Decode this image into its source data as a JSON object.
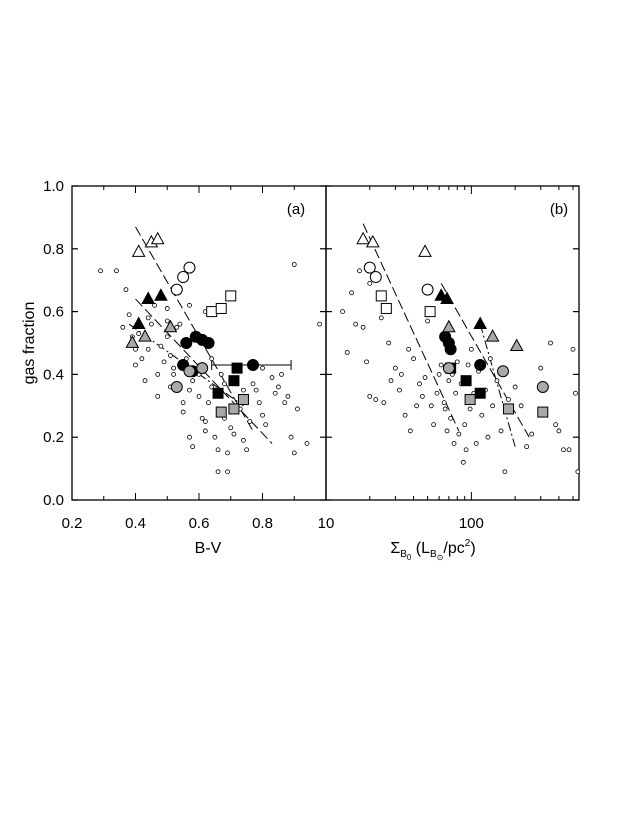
{
  "chart_data": [
    {
      "type": "scatter",
      "panel_label": "(a)",
      "xlabel": "B-V",
      "ylabel": "gas fraction",
      "xlim": [
        0.2,
        1.0
      ],
      "ylim": [
        0.0,
        1.0
      ],
      "xticks": [
        0.2,
        0.4,
        0.6,
        0.8
      ],
      "yticks": [
        0.0,
        0.2,
        0.4,
        0.6,
        0.8,
        1.0
      ],
      "xscale": "linear",
      "grid": false,
      "legend": "none",
      "small_points": [
        [
          0.29,
          0.73
        ],
        [
          0.34,
          0.73
        ],
        [
          0.37,
          0.67
        ],
        [
          0.38,
          0.59
        ],
        [
          0.36,
          0.55
        ],
        [
          0.39,
          0.52
        ],
        [
          0.4,
          0.48
        ],
        [
          0.41,
          0.53
        ],
        [
          0.42,
          0.45
        ],
        [
          0.43,
          0.38
        ],
        [
          0.44,
          0.58
        ],
        [
          0.45,
          0.56
        ],
        [
          0.46,
          0.62
        ],
        [
          0.47,
          0.4
        ],
        [
          0.47,
          0.33
        ],
        [
          0.48,
          0.49
        ],
        [
          0.49,
          0.44
        ],
        [
          0.5,
          0.57
        ],
        [
          0.5,
          0.52
        ],
        [
          0.51,
          0.46
        ],
        [
          0.51,
          0.36
        ],
        [
          0.52,
          0.42
        ],
        [
          0.53,
          0.55
        ],
        [
          0.54,
          0.56
        ],
        [
          0.55,
          0.5
        ],
        [
          0.55,
          0.31
        ],
        [
          0.56,
          0.45
        ],
        [
          0.57,
          0.62
        ],
        [
          0.57,
          0.35
        ],
        [
          0.57,
          0.2
        ],
        [
          0.58,
          0.17
        ],
        [
          0.59,
          0.53
        ],
        [
          0.6,
          0.4
        ],
        [
          0.6,
          0.33
        ],
        [
          0.61,
          0.26
        ],
        [
          0.62,
          0.25
        ],
        [
          0.62,
          0.22
        ],
        [
          0.62,
          0.6
        ],
        [
          0.63,
          0.31
        ],
        [
          0.63,
          0.5
        ],
        [
          0.64,
          0.45
        ],
        [
          0.65,
          0.2
        ],
        [
          0.66,
          0.16
        ],
        [
          0.66,
          0.09
        ],
        [
          0.67,
          0.27
        ],
        [
          0.67,
          0.4
        ],
        [
          0.68,
          0.37
        ],
        [
          0.69,
          0.15
        ],
        [
          0.69,
          0.09
        ],
        [
          0.7,
          0.23
        ],
        [
          0.71,
          0.21
        ],
        [
          0.72,
          0.37
        ],
        [
          0.73,
          0.33
        ],
        [
          0.73,
          0.29
        ],
        [
          0.74,
          0.35
        ],
        [
          0.75,
          0.16
        ],
        [
          0.76,
          0.25
        ],
        [
          0.77,
          0.37
        ],
        [
          0.78,
          0.35
        ],
        [
          0.79,
          0.31
        ],
        [
          0.8,
          0.27
        ],
        [
          0.81,
          0.24
        ],
        [
          0.83,
          0.39
        ],
        [
          0.84,
          0.34
        ],
        [
          0.86,
          0.4
        ],
        [
          0.87,
          0.31
        ],
        [
          0.88,
          0.33
        ],
        [
          0.89,
          0.2
        ],
        [
          0.9,
          0.75
        ],
        [
          0.9,
          0.15
        ],
        [
          0.91,
          0.29
        ],
        [
          0.94,
          0.18
        ],
        [
          0.98,
          0.56
        ],
        [
          0.4,
          0.43
        ],
        [
          0.44,
          0.48
        ],
        [
          0.5,
          0.61
        ],
        [
          0.52,
          0.4
        ],
        [
          0.55,
          0.28
        ],
        [
          0.58,
          0.38
        ],
        [
          0.64,
          0.36
        ],
        [
          0.68,
          0.26
        ],
        [
          0.7,
          0.3
        ],
        [
          0.74,
          0.19
        ],
        [
          0.8,
          0.42
        ],
        [
          0.85,
          0.36
        ]
      ],
      "series": [
        {
          "marker": "triangle",
          "fill": "open",
          "points": [
            [
              0.41,
              0.79
            ],
            [
              0.45,
              0.82
            ],
            [
              0.47,
              0.83
            ]
          ]
        },
        {
          "marker": "circle",
          "fill": "open",
          "points": [
            [
              0.53,
              0.67
            ],
            [
              0.55,
              0.71
            ],
            [
              0.57,
              0.74
            ]
          ]
        },
        {
          "marker": "square",
          "fill": "open",
          "points": [
            [
              0.64,
              0.6
            ],
            [
              0.67,
              0.61
            ],
            [
              0.7,
              0.65
            ]
          ]
        },
        {
          "marker": "triangle",
          "fill": "black",
          "points": [
            [
              0.44,
              0.64
            ],
            [
              0.48,
              0.65
            ],
            [
              0.41,
              0.56
            ]
          ]
        },
        {
          "marker": "circle",
          "fill": "black",
          "points": [
            [
              0.59,
              0.52
            ],
            [
              0.61,
              0.51
            ],
            [
              0.63,
              0.5
            ],
            [
              0.56,
              0.5
            ],
            [
              0.55,
              0.43
            ],
            [
              0.58,
              0.41
            ],
            [
              0.77,
              0.43
            ]
          ]
        },
        {
          "marker": "square",
          "fill": "black",
          "points": [
            [
              0.66,
              0.34
            ],
            [
              0.71,
              0.38
            ],
            [
              0.72,
              0.42
            ]
          ]
        },
        {
          "marker": "triangle",
          "fill": "gray",
          "points": [
            [
              0.39,
              0.5
            ],
            [
              0.43,
              0.52
            ],
            [
              0.51,
              0.55
            ]
          ]
        },
        {
          "marker": "circle",
          "fill": "gray",
          "points": [
            [
              0.53,
              0.36
            ],
            [
              0.57,
              0.41
            ],
            [
              0.61,
              0.42
            ]
          ]
        },
        {
          "marker": "square",
          "fill": "gray",
          "points": [
            [
              0.67,
              0.28
            ],
            [
              0.71,
              0.29
            ],
            [
              0.74,
              0.32
            ]
          ]
        }
      ],
      "error_bar": {
        "x": 0.77,
        "y": 0.43,
        "x_min": 0.64,
        "x_max": 0.89
      },
      "fit_lines": [
        {
          "style": "long-dash",
          "from": [
            0.4,
            0.87
          ],
          "to": [
            0.77,
            0.22
          ]
        },
        {
          "style": "long-dash",
          "from": [
            0.4,
            0.64
          ],
          "to": [
            0.83,
            0.18
          ]
        },
        {
          "style": "dash-dot",
          "from": [
            0.38,
            0.56
          ],
          "to": [
            0.74,
            0.3
          ]
        }
      ]
    },
    {
      "type": "scatter",
      "panel_label": "(b)",
      "xlabel": "Σ_B0 (L_B⊙/pc²)",
      "xlabel_parts": {
        "sigma": "Σ",
        "sigma_sub": "B",
        "sigma_subsub": "0",
        "open": " (L",
        "l_sub": "B",
        "l_subsub": "⊙",
        "mid": "/pc",
        "sup": "2",
        "close": ")"
      },
      "ylabel": "gas fraction",
      "xlim": [
        10,
        550
      ],
      "ylim": [
        0.0,
        1.0
      ],
      "xticks": [
        10,
        100
      ],
      "yticks": [
        0.0,
        0.2,
        0.4,
        0.6,
        0.8,
        1.0
      ],
      "xscale": "log",
      "grid": false,
      "legend": "none",
      "small_points": [
        [
          13,
          0.6
        ],
        [
          14,
          0.47
        ],
        [
          15,
          0.66
        ],
        [
          16,
          0.56
        ],
        [
          17,
          0.73
        ],
        [
          18,
          0.55
        ],
        [
          19,
          0.44
        ],
        [
          20,
          0.69
        ],
        [
          20,
          0.33
        ],
        [
          22,
          0.32
        ],
        [
          23,
          0.65
        ],
        [
          24,
          0.58
        ],
        [
          25,
          0.31
        ],
        [
          27,
          0.5
        ],
        [
          28,
          0.38
        ],
        [
          30,
          0.42
        ],
        [
          32,
          0.35
        ],
        [
          33,
          0.4
        ],
        [
          35,
          0.27
        ],
        [
          37,
          0.48
        ],
        [
          38,
          0.22
        ],
        [
          40,
          0.45
        ],
        [
          42,
          0.3
        ],
        [
          44,
          0.37
        ],
        [
          46,
          0.33
        ],
        [
          48,
          0.39
        ],
        [
          50,
          0.57
        ],
        [
          53,
          0.3
        ],
        [
          55,
          0.24
        ],
        [
          58,
          0.34
        ],
        [
          60,
          0.4
        ],
        [
          62,
          0.43
        ],
        [
          65,
          0.31
        ],
        [
          66,
          0.29
        ],
        [
          68,
          0.22
        ],
        [
          70,
          0.38
        ],
        [
          72,
          0.26
        ],
        [
          74,
          0.4
        ],
        [
          76,
          0.18
        ],
        [
          78,
          0.34
        ],
        [
          80,
          0.44
        ],
        [
          82,
          0.21
        ],
        [
          85,
          0.37
        ],
        [
          88,
          0.12
        ],
        [
          90,
          0.24
        ],
        [
          92,
          0.16
        ],
        [
          95,
          0.43
        ],
        [
          98,
          0.29
        ],
        [
          100,
          0.48
        ],
        [
          104,
          0.34
        ],
        [
          108,
          0.18
        ],
        [
          112,
          0.41
        ],
        [
          118,
          0.27
        ],
        [
          125,
          0.35
        ],
        [
          130,
          0.2
        ],
        [
          135,
          0.45
        ],
        [
          140,
          0.3
        ],
        [
          150,
          0.38
        ],
        [
          160,
          0.22
        ],
        [
          170,
          0.09
        ],
        [
          180,
          0.32
        ],
        [
          200,
          0.36
        ],
        [
          220,
          0.3
        ],
        [
          240,
          0.17
        ],
        [
          260,
          0.21
        ],
        [
          300,
          0.42
        ],
        [
          350,
          0.5
        ],
        [
          380,
          0.24
        ],
        [
          400,
          0.22
        ],
        [
          430,
          0.16
        ],
        [
          470,
          0.16
        ],
        [
          500,
          0.48
        ],
        [
          520,
          0.34
        ],
        [
          540,
          0.09
        ]
      ],
      "series": [
        {
          "marker": "triangle",
          "fill": "open",
          "points": [
            [
              18,
              0.83
            ],
            [
              21,
              0.82
            ],
            [
              48,
              0.79
            ]
          ]
        },
        {
          "marker": "circle",
          "fill": "open",
          "points": [
            [
              20,
              0.74
            ],
            [
              22,
              0.71
            ],
            [
              50,
              0.67
            ]
          ]
        },
        {
          "marker": "square",
          "fill": "open",
          "points": [
            [
              24,
              0.65
            ],
            [
              26,
              0.61
            ],
            [
              52,
              0.6
            ]
          ]
        },
        {
          "marker": "triangle",
          "fill": "black",
          "points": [
            [
              62,
              0.65
            ],
            [
              68,
              0.64
            ],
            [
              115,
              0.56
            ]
          ]
        },
        {
          "marker": "circle",
          "fill": "black",
          "points": [
            [
              66,
              0.52
            ],
            [
              70,
              0.5
            ],
            [
              72,
              0.48
            ],
            [
              115,
              0.43
            ]
          ]
        },
        {
          "marker": "square",
          "fill": "black",
          "points": [
            [
              72,
              0.42
            ],
            [
              92,
              0.38
            ],
            [
              115,
              0.34
            ]
          ]
        },
        {
          "marker": "triangle",
          "fill": "gray",
          "points": [
            [
              70,
              0.55
            ],
            [
              140,
              0.52
            ],
            [
              205,
              0.49
            ]
          ]
        },
        {
          "marker": "circle",
          "fill": "gray",
          "points": [
            [
              70,
              0.42
            ],
            [
              165,
              0.41
            ],
            [
              310,
              0.36
            ]
          ]
        },
        {
          "marker": "square",
          "fill": "gray",
          "points": [
            [
              98,
              0.32
            ],
            [
              180,
              0.29
            ],
            [
              310,
              0.28
            ]
          ]
        }
      ],
      "fit_lines": [
        {
          "style": "long-dash",
          "from": [
            18,
            0.88
          ],
          "to": [
            82,
            0.22
          ]
        },
        {
          "style": "long-dash",
          "from": [
            62,
            0.69
          ],
          "to": [
            250,
            0.2
          ]
        },
        {
          "style": "dash-dot",
          "from": [
            115,
            0.56
          ],
          "to": [
            200,
            0.17
          ]
        }
      ]
    }
  ]
}
